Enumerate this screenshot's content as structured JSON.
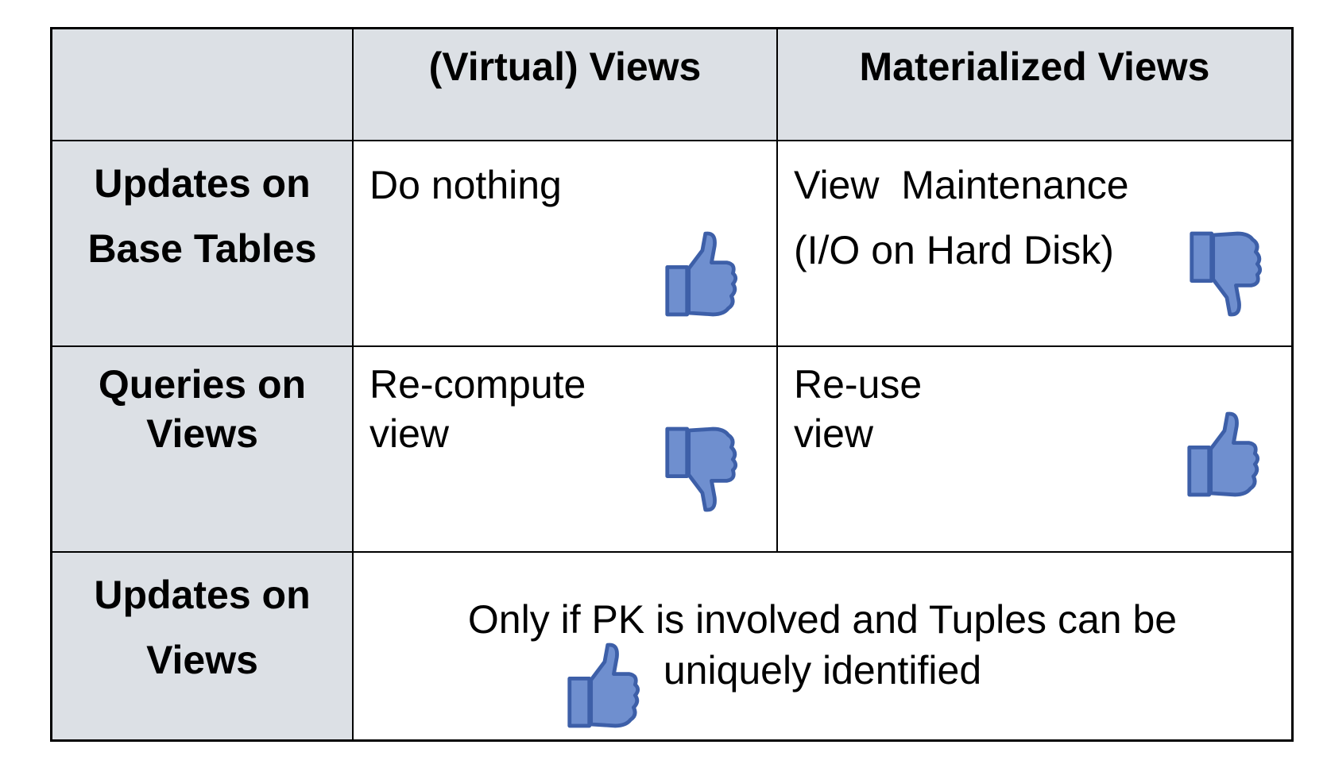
{
  "table": {
    "corner": "",
    "columns": [
      "(Virtual) Views",
      "Materialized Views"
    ],
    "rows": [
      {
        "label_lines": [
          "Updates on",
          "Base Tables"
        ],
        "virtual": {
          "lines": [
            "Do nothing"
          ],
          "verdict": "thumbs-up"
        },
        "materialized": {
          "lines": [
            "View  Maintenance",
            "(I/O on Hard Disk)"
          ],
          "verdict": "thumbs-down"
        }
      },
      {
        "label_lines": [
          "Queries on",
          "Views"
        ],
        "virtual": {
          "lines": [
            "Re-compute",
            "view"
          ],
          "verdict": "thumbs-down"
        },
        "materialized": {
          "lines": [
            "Re-use",
            "view"
          ],
          "verdict": "thumbs-up"
        }
      },
      {
        "label_lines": [
          "Updates on",
          "Views"
        ],
        "both": {
          "lines": [
            "Only if PK is involved and Tuples can be",
            "uniquely identified"
          ],
          "verdict": "thumbs-up"
        }
      }
    ]
  },
  "icons": {
    "thumbs_up": "thumbs-up-icon",
    "thumbs_down": "thumbs-down-icon"
  },
  "colors": {
    "header_bg": "#dce0e5",
    "icon_fill": "#6f8fcf",
    "icon_edge": "#3d5fa8"
  }
}
